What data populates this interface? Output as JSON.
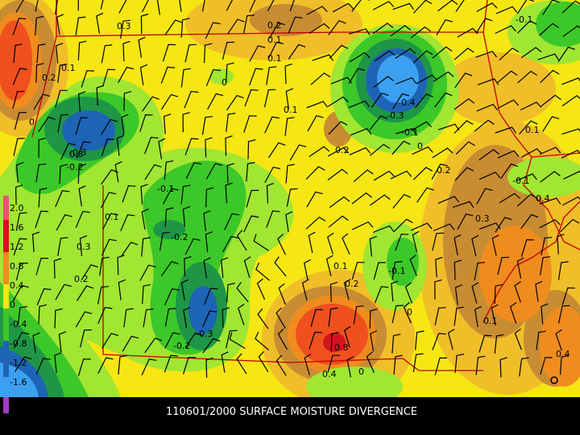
{
  "caption": "110601/2000 SURFACE MOISTURE DIVERGENCE",
  "colorbar_labels": [
    "2.0",
    "1.6",
    "1.2",
    "0.8",
    "0.4",
    "0",
    "-0.4",
    "-0.8",
    "-1.2",
    "-1.6"
  ],
  "contour_labels": [
    "0.3",
    "0.2",
    "0.1",
    "0",
    "-0.1",
    "0.1",
    "-0.4",
    "-0.3",
    "-0.1",
    "0",
    "0.2",
    "0.1",
    "0.2",
    "0.3",
    "0.1",
    "-0.1",
    "-0.2",
    "0.1",
    "0.3",
    "0.2",
    "-0.2",
    "-0.3",
    "-0.2",
    "0.1",
    "0.2",
    "-0.1",
    "0",
    "0.8",
    "0.4",
    "0.4",
    "0.3",
    "0.1",
    "-0.1",
    "0",
    "0.2",
    "0",
    "-0.3",
    "0.4",
    "0.1"
  ]
}
